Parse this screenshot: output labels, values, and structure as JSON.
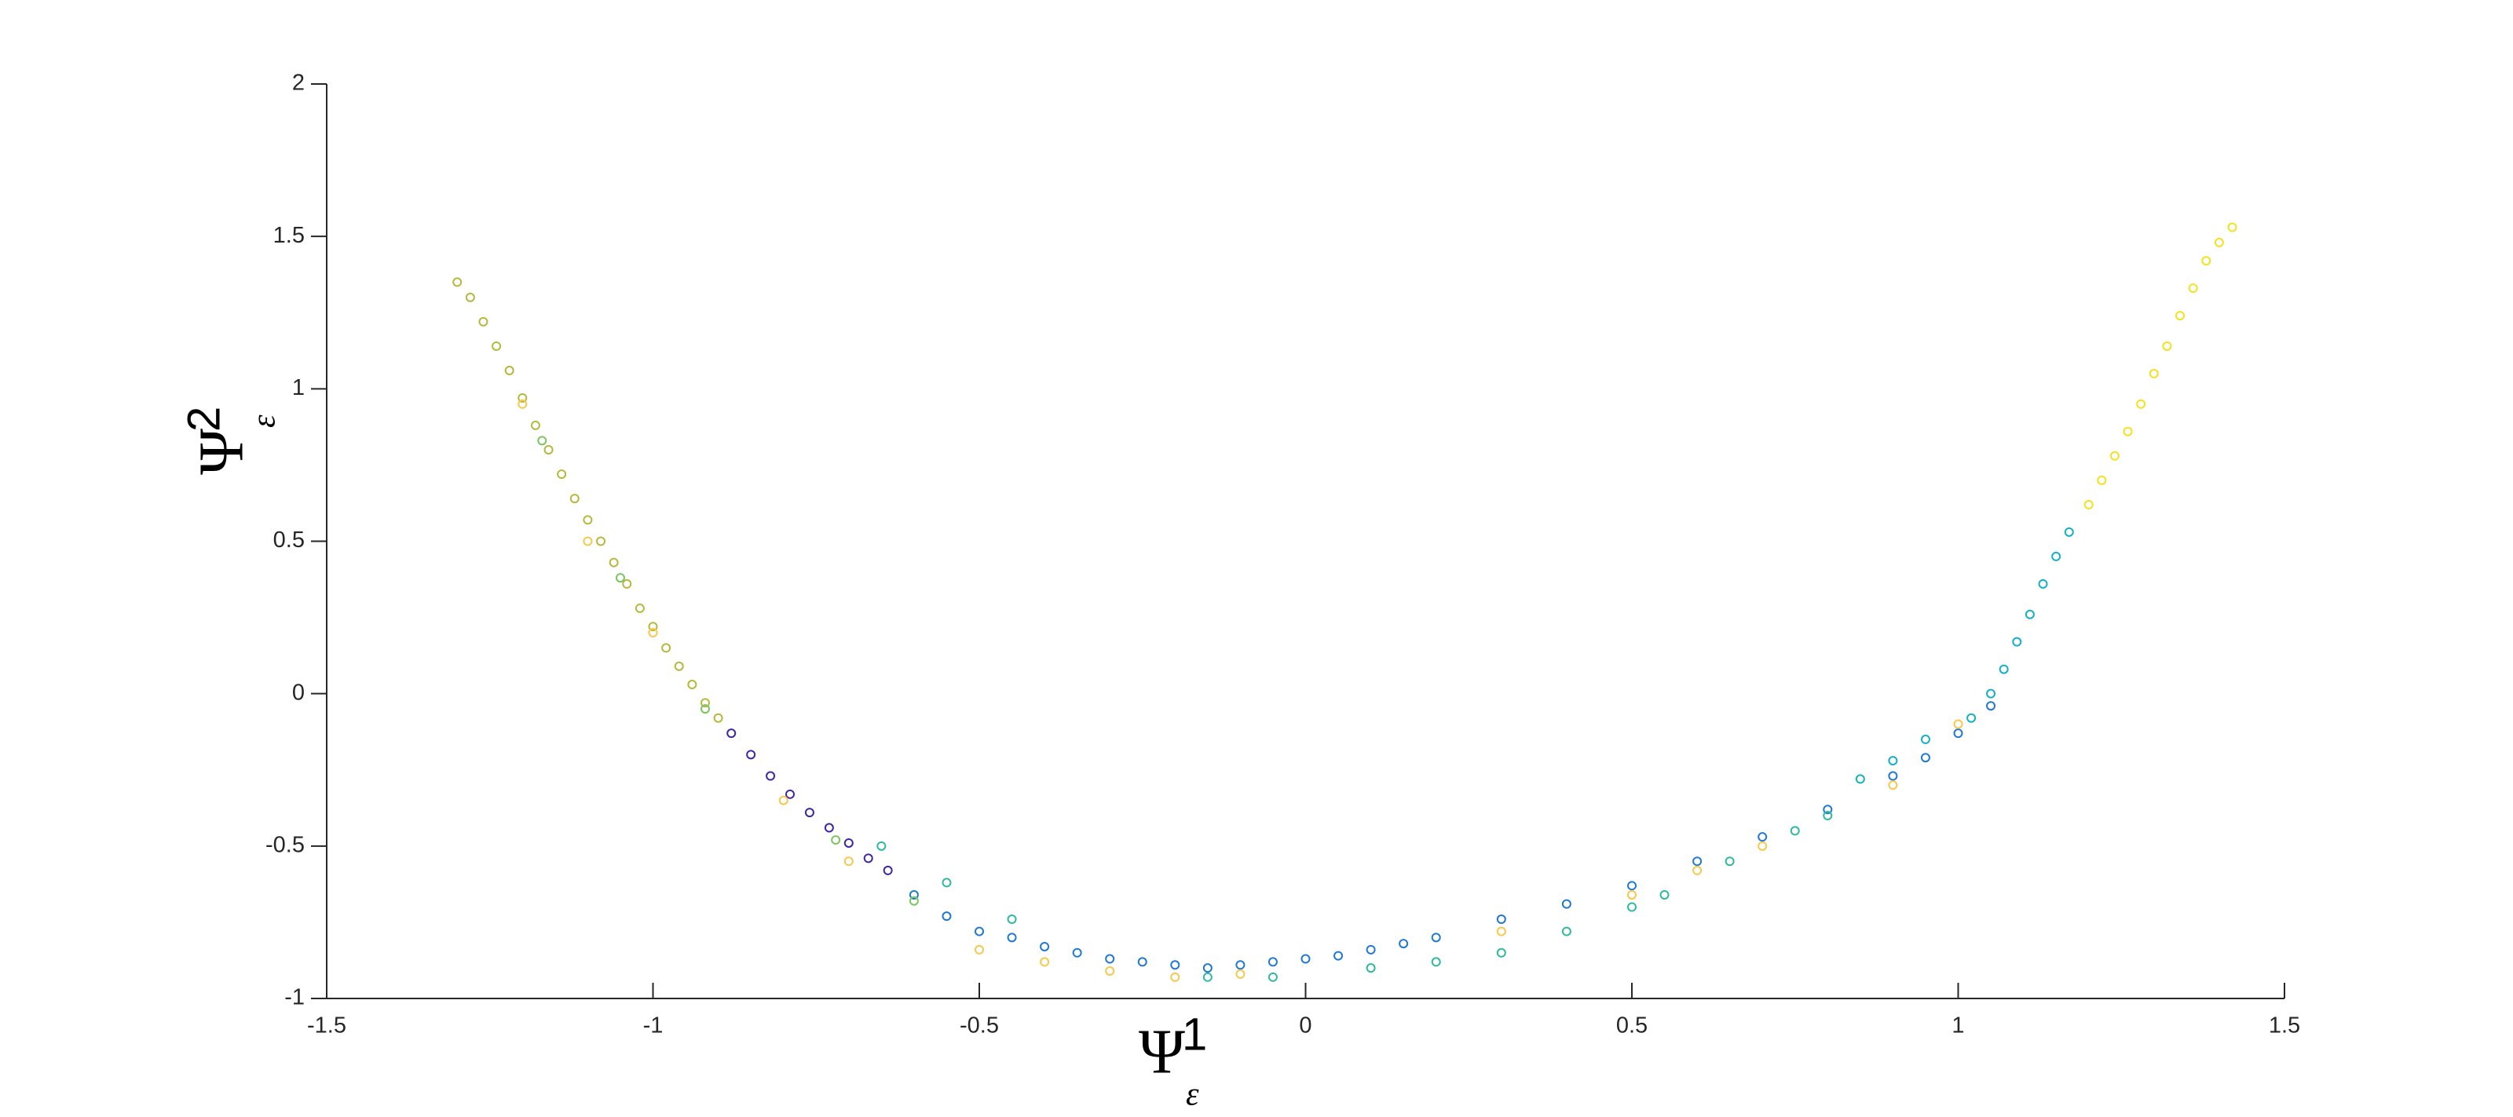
{
  "chart_data": {
    "type": "scatter",
    "x_label": {
      "base": "Ψ",
      "sup": "1",
      "sub": "ε"
    },
    "y_label": {
      "base": "Ψ",
      "sup": "2",
      "sub": "ε"
    },
    "xlim": [
      -1.5,
      1.5
    ],
    "xticks": [
      -1.5,
      -1,
      -0.5,
      0,
      0.5,
      1,
      1.5
    ],
    "ylim": [
      -1,
      2
    ],
    "yticks": [
      -1,
      -0.5,
      0,
      0.5,
      1,
      1.5,
      2
    ],
    "grid": false,
    "series": [
      {
        "color": "#b5b83a",
        "x": [
          -1.3,
          -1.28,
          -1.26,
          -1.24,
          -1.22,
          -1.2,
          -1.18,
          -1.16,
          -1.14,
          -1.12,
          -1.1,
          -1.08,
          -1.06,
          -1.04,
          -1.02,
          -1.0,
          -0.98,
          -0.96,
          -0.94,
          -0.92,
          -0.9
        ],
        "y": [
          1.35,
          1.3,
          1.22,
          1.14,
          1.06,
          0.97,
          0.88,
          0.8,
          0.72,
          0.64,
          0.57,
          0.5,
          0.43,
          0.36,
          0.28,
          0.22,
          0.15,
          0.09,
          0.03,
          -0.03,
          -0.08
        ]
      },
      {
        "color": "#3e26a8",
        "x": [
          -0.88,
          -0.85,
          -0.82,
          -0.79,
          -0.76,
          -0.73,
          -0.7,
          -0.67,
          -0.64
        ],
        "y": [
          -0.13,
          -0.2,
          -0.27,
          -0.33,
          -0.39,
          -0.44,
          -0.49,
          -0.54,
          -0.58
        ]
      },
      {
        "color": "#1f78d6",
        "x": [
          -0.6,
          -0.55,
          -0.5,
          -0.45,
          -0.4,
          -0.35,
          -0.3,
          -0.25,
          -0.2,
          -0.15,
          -0.1,
          -0.05,
          0,
          0.05,
          0.1,
          0.15,
          0.2,
          0.3,
          0.4,
          0.5,
          0.6,
          0.7,
          0.8,
          0.9,
          0.95,
          1.0,
          1.05
        ],
        "y": [
          -0.66,
          -0.73,
          -0.78,
          -0.8,
          -0.83,
          -0.85,
          -0.87,
          -0.88,
          -0.89,
          -0.9,
          -0.89,
          -0.88,
          -0.87,
          -0.86,
          -0.84,
          -0.82,
          -0.8,
          -0.74,
          -0.69,
          -0.63,
          -0.55,
          -0.47,
          -0.38,
          -0.27,
          -0.21,
          -0.13,
          -0.04
        ]
      },
      {
        "color": "#14b0c8",
        "x": [
          1.02,
          1.05,
          1.07,
          1.09,
          1.11,
          1.13,
          1.15,
          1.17,
          0.85,
          0.9,
          0.95
        ],
        "y": [
          -0.08,
          0.0,
          0.08,
          0.17,
          0.26,
          0.36,
          0.45,
          0.53,
          -0.28,
          -0.22,
          -0.15
        ]
      },
      {
        "color": "#2dba9e",
        "x": [
          0.3,
          0.4,
          0.5,
          0.55,
          0.65,
          0.75,
          0.8,
          0.1,
          0.2,
          -0.05,
          -0.15,
          -0.45,
          -0.65,
          -0.55
        ],
        "y": [
          -0.85,
          -0.78,
          -0.7,
          -0.66,
          -0.55,
          -0.45,
          -0.4,
          -0.9,
          -0.88,
          -0.93,
          -0.93,
          -0.74,
          -0.5,
          -0.62
        ]
      },
      {
        "color": "#f5e11c",
        "x": [
          1.2,
          1.22,
          1.24,
          1.26,
          1.28,
          1.3,
          1.32,
          1.34,
          1.36,
          1.38,
          1.4,
          1.42
        ],
        "y": [
          0.62,
          0.7,
          0.78,
          0.86,
          0.95,
          1.05,
          1.14,
          1.24,
          1.33,
          1.42,
          1.48,
          1.53
        ]
      },
      {
        "color": "#f7c84a",
        "x": [
          -0.5,
          -0.4,
          -0.3,
          -0.2,
          -0.1,
          0.3,
          0.5,
          0.6,
          0.7,
          0.9,
          1.0,
          -0.7,
          -0.8,
          -1.0,
          -1.1,
          -1.2
        ],
        "y": [
          -0.84,
          -0.88,
          -0.91,
          -0.93,
          -0.92,
          -0.78,
          -0.66,
          -0.58,
          -0.5,
          -0.3,
          -0.1,
          -0.55,
          -0.35,
          0.2,
          0.5,
          0.95
        ]
      },
      {
        "color": "#7cc560",
        "x": [
          -1.17,
          -1.05,
          -0.92,
          -0.72,
          -0.6
        ],
        "y": [
          0.83,
          0.38,
          -0.05,
          -0.48,
          -0.68
        ]
      }
    ]
  }
}
